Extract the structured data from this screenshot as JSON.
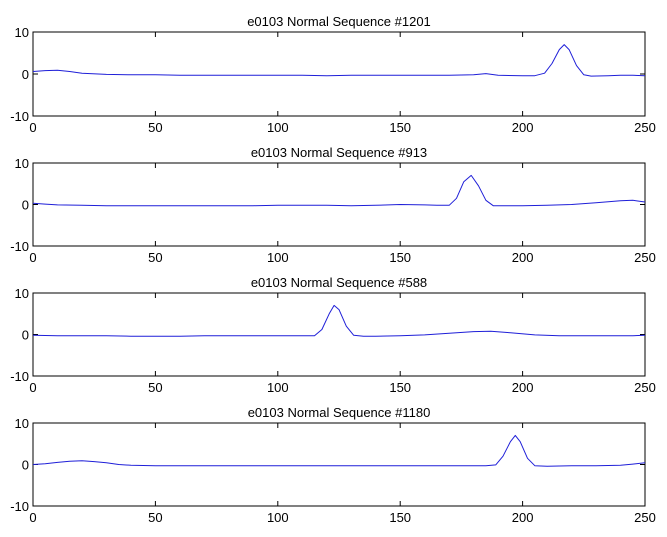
{
  "colors": {
    "line": "#1f1fd8",
    "axis": "#000000",
    "background": "#ffffff"
  },
  "chart_data": [
    {
      "type": "line",
      "title": "e0103 Normal Sequence #1201",
      "xlabel": "",
      "ylabel": "",
      "xlim": [
        0,
        250
      ],
      "ylim": [
        -10,
        10
      ],
      "xticks": [
        0,
        50,
        100,
        150,
        200,
        250
      ],
      "yticks": [
        -10,
        0,
        10
      ],
      "grid": false,
      "series": [
        {
          "x": [
            0,
            5,
            10,
            15,
            20,
            30,
            40,
            50,
            60,
            70,
            80,
            90,
            100,
            110,
            120,
            130,
            140,
            150,
            160,
            170,
            180,
            185,
            190,
            200,
            205,
            209,
            212,
            215,
            217,
            219,
            222,
            225,
            228,
            235,
            240,
            245,
            250
          ],
          "y": [
            0.6,
            0.8,
            0.9,
            0.6,
            0.2,
            -0.1,
            -0.2,
            -0.2,
            -0.3,
            -0.3,
            -0.3,
            -0.3,
            -0.3,
            -0.3,
            -0.4,
            -0.3,
            -0.3,
            -0.3,
            -0.3,
            -0.3,
            -0.2,
            0.1,
            -0.3,
            -0.4,
            -0.4,
            0.2,
            2.5,
            5.8,
            7.0,
            5.8,
            2.0,
            -0.2,
            -0.5,
            -0.4,
            -0.3,
            -0.3,
            -0.4
          ]
        }
      ]
    },
    {
      "type": "line",
      "title": "e0103 Normal Sequence #913",
      "xlabel": "",
      "ylabel": "",
      "xlim": [
        0,
        250
      ],
      "ylim": [
        -10,
        10
      ],
      "xticks": [
        0,
        50,
        100,
        150,
        200,
        250
      ],
      "yticks": [
        -10,
        0,
        10
      ],
      "grid": false,
      "series": [
        {
          "x": [
            0,
            5,
            10,
            20,
            30,
            40,
            50,
            60,
            70,
            80,
            90,
            100,
            110,
            120,
            130,
            140,
            150,
            160,
            165,
            170,
            173,
            176,
            179,
            182,
            185,
            188,
            195,
            200,
            210,
            220,
            230,
            240,
            245,
            250
          ],
          "y": [
            0.3,
            0.1,
            -0.1,
            -0.2,
            -0.3,
            -0.3,
            -0.3,
            -0.3,
            -0.3,
            -0.3,
            -0.3,
            -0.2,
            -0.2,
            -0.2,
            -0.3,
            -0.2,
            0.0,
            -0.1,
            -0.2,
            -0.2,
            1.5,
            5.5,
            7.0,
            4.5,
            1.0,
            -0.3,
            -0.3,
            -0.3,
            -0.2,
            0.0,
            0.4,
            0.9,
            1.0,
            0.6
          ]
        }
      ]
    },
    {
      "type": "line",
      "title": "e0103 Normal Sequence #588",
      "xlabel": "",
      "ylabel": "",
      "xlim": [
        0,
        250
      ],
      "ylim": [
        -10,
        10
      ],
      "xticks": [
        0,
        50,
        100,
        150,
        200,
        250
      ],
      "yticks": [
        -10,
        0,
        10
      ],
      "grid": false,
      "series": [
        {
          "x": [
            0,
            10,
            20,
            30,
            40,
            50,
            60,
            70,
            80,
            90,
            100,
            110,
            115,
            118,
            121,
            123,
            125,
            128,
            131,
            135,
            140,
            150,
            160,
            170,
            180,
            187,
            195,
            205,
            215,
            225,
            235,
            245,
            250
          ],
          "y": [
            -0.2,
            -0.3,
            -0.3,
            -0.3,
            -0.4,
            -0.4,
            -0.4,
            -0.3,
            -0.3,
            -0.3,
            -0.3,
            -0.3,
            -0.3,
            1.2,
            5.0,
            7.0,
            6.0,
            2.0,
            -0.2,
            -0.4,
            -0.4,
            -0.3,
            -0.1,
            0.3,
            0.7,
            0.8,
            0.4,
            -0.1,
            -0.3,
            -0.3,
            -0.3,
            -0.3,
            -0.2
          ]
        }
      ]
    },
    {
      "type": "line",
      "title": "e0103 Normal Sequence #1180",
      "xlabel": "",
      "ylabel": "",
      "xlim": [
        0,
        250
      ],
      "ylim": [
        -10,
        10
      ],
      "xticks": [
        0,
        50,
        100,
        150,
        200,
        250
      ],
      "yticks": [
        -10,
        0,
        10
      ],
      "grid": false,
      "series": [
        {
          "x": [
            0,
            5,
            10,
            15,
            20,
            25,
            30,
            35,
            40,
            50,
            60,
            70,
            80,
            90,
            100,
            110,
            120,
            130,
            140,
            150,
            160,
            170,
            180,
            185,
            189,
            192,
            195,
            197,
            199,
            202,
            205,
            210,
            220,
            230,
            240,
            245,
            250
          ],
          "y": [
            0.0,
            0.2,
            0.5,
            0.8,
            0.9,
            0.7,
            0.4,
            0.0,
            -0.2,
            -0.3,
            -0.3,
            -0.3,
            -0.3,
            -0.3,
            -0.3,
            -0.3,
            -0.3,
            -0.3,
            -0.3,
            -0.3,
            -0.3,
            -0.3,
            -0.3,
            -0.3,
            -0.1,
            2.0,
            5.5,
            7.0,
            5.5,
            1.5,
            -0.3,
            -0.4,
            -0.3,
            -0.3,
            -0.2,
            0.1,
            0.4
          ]
        }
      ]
    }
  ]
}
